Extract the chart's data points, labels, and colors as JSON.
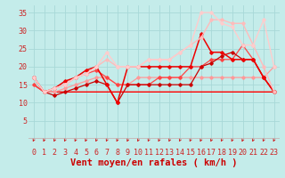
{
  "title": "",
  "xlabel": "Vent moyen/en rafales ( km/h )",
  "ylabel": "",
  "xlim": [
    -0.5,
    23.5
  ],
  "ylim": [
    0,
    37
  ],
  "yticks": [
    5,
    10,
    15,
    20,
    25,
    30,
    35
  ],
  "xticks": [
    0,
    1,
    2,
    3,
    4,
    5,
    6,
    7,
    8,
    9,
    10,
    11,
    12,
    13,
    14,
    15,
    16,
    17,
    18,
    19,
    20,
    21,
    22,
    23
  ],
  "bg_color": "#c4ecea",
  "grid_color": "#a8d8d8",
  "lines": [
    {
      "x": [
        0,
        1,
        2,
        3,
        4,
        5,
        6,
        7,
        8,
        9,
        10,
        11,
        12,
        13,
        14,
        15,
        16,
        17,
        18,
        19,
        20,
        21,
        22,
        23
      ],
      "y": [
        15,
        13,
        13,
        13,
        13,
        13,
        13,
        13,
        13,
        13,
        13,
        13,
        13,
        13,
        13,
        13,
        13,
        13,
        13,
        13,
        13,
        13,
        13,
        13
      ],
      "color": "#ff0000",
      "lw": 1.0,
      "marker": null
    },
    {
      "x": [
        0,
        1,
        2,
        3,
        4,
        5,
        6,
        7,
        8,
        9,
        10,
        11,
        12,
        13,
        14,
        15,
        16,
        17,
        18,
        19,
        20,
        21,
        22,
        23
      ],
      "y": [
        17,
        13,
        13,
        14,
        15,
        16,
        17,
        17,
        15,
        15,
        17,
        17,
        17,
        17,
        17,
        17,
        17,
        17,
        17,
        17,
        17,
        17,
        17,
        20
      ],
      "color": "#ff9999",
      "lw": 0.9,
      "marker": "D",
      "ms": 1.8
    },
    {
      "x": [
        0,
        1,
        2,
        3,
        4,
        5,
        6,
        7,
        8,
        9,
        10,
        11,
        12,
        13,
        14,
        15,
        16,
        17,
        18,
        19,
        20,
        21,
        22,
        23
      ],
      "y": [
        15,
        13,
        14,
        15,
        17,
        18,
        19,
        17,
        15,
        15,
        15,
        15,
        17,
        17,
        17,
        20,
        20,
        22,
        22,
        22,
        26,
        22,
        17,
        13
      ],
      "color": "#ff4444",
      "lw": 0.9,
      "marker": "D",
      "ms": 1.8
    },
    {
      "x": [
        0,
        1,
        2,
        3,
        4,
        5,
        6,
        7,
        8,
        9,
        10,
        11,
        12,
        13,
        14,
        15,
        16,
        17,
        18,
        19,
        20,
        21,
        22,
        23
      ],
      "y": [
        17,
        13,
        12,
        13,
        14,
        15,
        16,
        15,
        10,
        15,
        15,
        15,
        15,
        15,
        15,
        15,
        20,
        21,
        23,
        24,
        22,
        22,
        17,
        13
      ],
      "color": "#cc0000",
      "lw": 0.9,
      "marker": "D",
      "ms": 1.8
    },
    {
      "x": [
        0,
        1,
        2,
        3,
        4,
        5,
        6,
        7,
        8,
        9,
        10,
        11,
        12,
        13,
        14,
        15,
        16,
        17,
        18,
        19,
        20,
        21,
        22,
        23
      ],
      "y": [
        17,
        13,
        14,
        16,
        17,
        19,
        20,
        15,
        10,
        20,
        20,
        20,
        20,
        20,
        20,
        20,
        29,
        24,
        24,
        22,
        22,
        22,
        17,
        13
      ],
      "color": "#ee0000",
      "lw": 1.1,
      "marker": "D",
      "ms": 1.8
    },
    {
      "x": [
        0,
        1,
        2,
        3,
        4,
        5,
        6,
        7,
        8,
        9,
        10,
        11,
        12,
        13,
        14,
        15,
        16,
        17,
        18,
        19,
        20,
        21,
        22,
        23
      ],
      "y": [
        17,
        13,
        14,
        15,
        17,
        18,
        20,
        22,
        20,
        20,
        20,
        22,
        22,
        22,
        24,
        26,
        28,
        33,
        33,
        32,
        32,
        26,
        20,
        13
      ],
      "color": "#ffbbbb",
      "lw": 1.0,
      "marker": "D",
      "ms": 1.8
    },
    {
      "x": [
        0,
        1,
        2,
        3,
        4,
        5,
        6,
        7,
        8,
        9,
        10,
        11,
        12,
        13,
        14,
        15,
        16,
        17,
        18,
        19,
        20,
        21,
        22,
        23
      ],
      "y": [
        17,
        13,
        14,
        15,
        17,
        18,
        20,
        24,
        20,
        20,
        20,
        22,
        22,
        22,
        24,
        26,
        35,
        35,
        32,
        31,
        26,
        26,
        33,
        20
      ],
      "color": "#ffcccc",
      "lw": 1.0,
      "marker": "D",
      "ms": 1.8
    }
  ],
  "arrow_color": "#cc2222",
  "xlabel_color": "#cc0000",
  "xlabel_fontsize": 7.5,
  "tick_fontsize": 6,
  "tick_color": "#cc2222"
}
